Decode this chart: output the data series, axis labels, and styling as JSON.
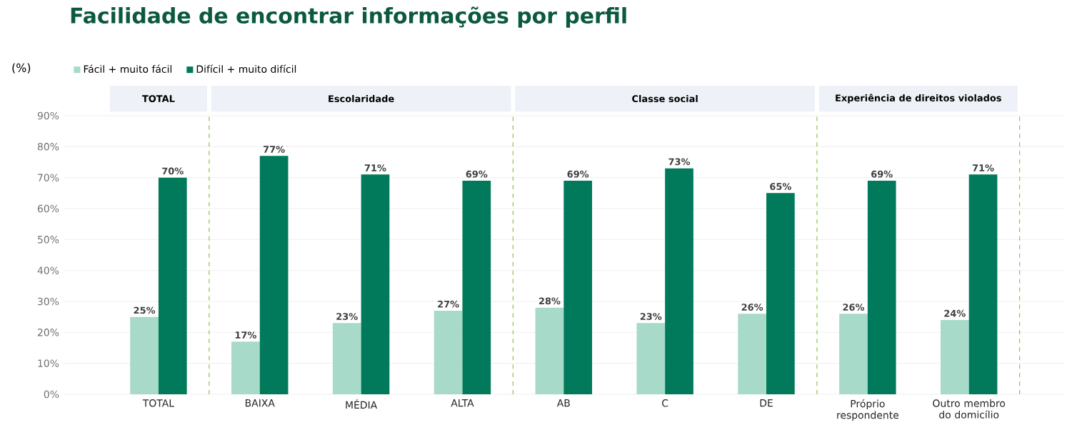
{
  "chart_data": {
    "type": "bar",
    "title": "Facilidade de encontrar informações por perfil",
    "ylabel": "(%)",
    "categories": [
      "TOTAL",
      "BAIXA",
      "MÉDIA",
      "ALTA",
      "AB",
      "C",
      "DE",
      "Próprio respondente",
      "Outro membro do domicílio"
    ],
    "series": [
      {
        "name": "Fácil + muito fácil",
        "color": "#a8dac9",
        "values": [
          25,
          17,
          23,
          27,
          28,
          23,
          26,
          26,
          24
        ],
        "value_labels": [
          "25%",
          "17%",
          "23%",
          "27%",
          "28%",
          "23%",
          "26%",
          "26%",
          "24%"
        ]
      },
      {
        "name": "Difícil + muito difícil",
        "color": "#007a5a",
        "values": [
          70,
          77,
          71,
          69,
          69,
          73,
          65,
          69,
          71
        ],
        "value_labels": [
          "70%",
          "77%",
          "71%",
          "69%",
          "69%",
          "73%",
          "65%",
          "69%",
          "71%"
        ]
      }
    ],
    "ylim": [
      0,
      90
    ],
    "yticks": [
      {
        "value": 0,
        "label": "0%"
      },
      {
        "value": 10,
        "label": "10%"
      },
      {
        "value": 20,
        "label": "20%"
      },
      {
        "value": 30,
        "label": "30%"
      },
      {
        "value": 40,
        "label": "40%"
      },
      {
        "value": 50,
        "label": "50%"
      },
      {
        "value": 60,
        "label": "60%"
      },
      {
        "value": 70,
        "label": "70%"
      },
      {
        "value": 80,
        "label": "80%"
      },
      {
        "value": 90,
        "label": "90%"
      }
    ],
    "grid": "y",
    "legend": "top left",
    "annotations": [
      "TOTAL",
      "Escolaridade",
      "Classe social",
      "Experiência de direitos violados"
    ]
  }
}
